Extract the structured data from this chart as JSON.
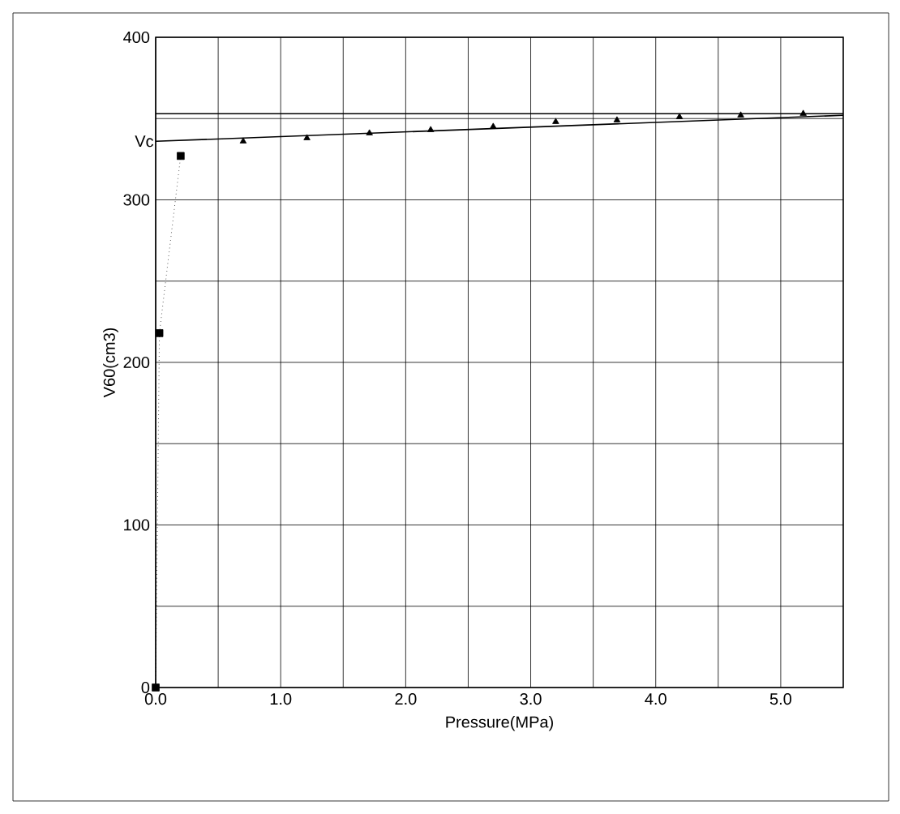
{
  "chart_data": {
    "type": "scatter",
    "xlabel": "Pressure(MPa)",
    "ylabel": "V60(cm3)",
    "xlim": [
      0,
      5.5
    ],
    "ylim": [
      0,
      400
    ],
    "xticks": [
      {
        "value": 0,
        "label": "0.0"
      },
      {
        "value": 1,
        "label": "1.0"
      },
      {
        "value": 2,
        "label": "2.0"
      },
      {
        "value": 3,
        "label": "3.0"
      },
      {
        "value": 4,
        "label": "4.0"
      },
      {
        "value": 5,
        "label": "5.0"
      }
    ],
    "yticks": [
      0,
      100,
      200,
      300,
      400
    ],
    "grid": true,
    "series": [
      {
        "type": "line",
        "line_style": "dotted",
        "marker": "square",
        "color": "#000000",
        "x": [
          0,
          0.03,
          0.2
        ],
        "values": [
          0,
          218,
          327
        ]
      },
      {
        "marker": "triangle",
        "color": "#000000",
        "x": [
          0.7,
          1.21,
          1.71,
          2.2,
          2.7,
          3.2,
          3.69,
          4.19,
          4.68,
          5.18
        ],
        "values": [
          336,
          338,
          341,
          343,
          345,
          348,
          349,
          351,
          352,
          353
        ]
      },
      {
        "type": "line",
        "line_style": "solid",
        "marker": "none",
        "color": "#000000",
        "x": [
          0,
          5.5
        ],
        "values": [
          336,
          352
        ]
      }
    ],
    "ref_lines": [
      {
        "axis": "y",
        "value": 353,
        "color": "#000000"
      }
    ],
    "annotations": [
      {
        "text": "Vc",
        "x": 0,
        "y": 336
      }
    ]
  }
}
